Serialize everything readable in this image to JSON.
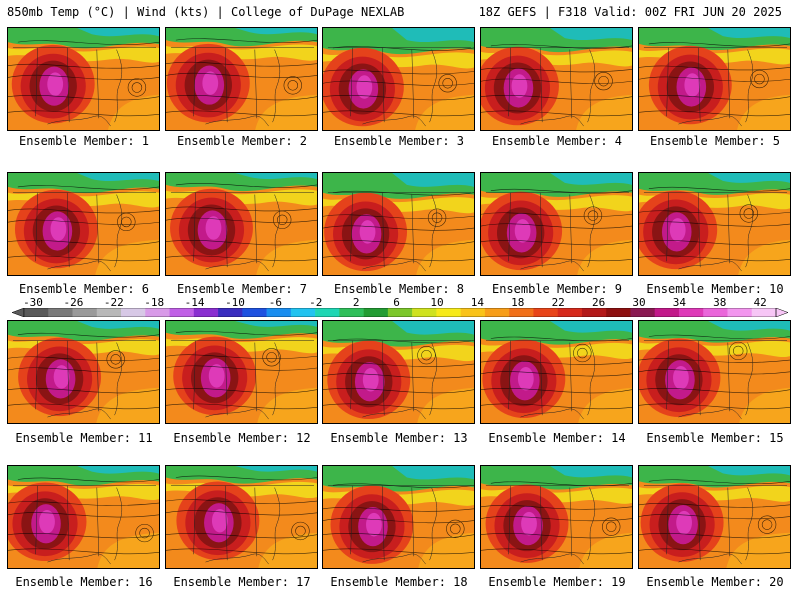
{
  "header": {
    "left": "850mb Temp (°C) | Wind (kts) | College of DuPage NEXLAB",
    "right": "18Z GEFS | F318 Valid: 00Z FRI JUN 20 2025"
  },
  "colorbar": {
    "labels": [
      "-30",
      "-26",
      "-22",
      "-18",
      "-14",
      "-10",
      "-6",
      "-2",
      "2",
      "6",
      "10",
      "14",
      "18",
      "22",
      "26",
      "30",
      "34",
      "38",
      "42"
    ],
    "colors": [
      "#5a5a5a",
      "#7a7a7a",
      "#9a9a9a",
      "#b8b8b8",
      "#d7c8e6",
      "#d89ae8",
      "#c060e6",
      "#8a2fd0",
      "#3a2dbf",
      "#1f52e0",
      "#1a8ef0",
      "#22c3f0",
      "#1fd6b4",
      "#2fbf5a",
      "#239c33",
      "#7cc72b",
      "#cfe21f",
      "#f7ea1a",
      "#f9c31a",
      "#f79e1a",
      "#f1701a",
      "#e8451a",
      "#d62a1c",
      "#b31a1a",
      "#8e1010",
      "#8a1a52",
      "#c21a8a",
      "#de3ab8",
      "#ea66da",
      "#f296ee",
      "#f7c6f6"
    ]
  },
  "members": [
    {
      "label": "Ensemble Member: 1"
    },
    {
      "label": "Ensemble Member: 2"
    },
    {
      "label": "Ensemble Member: 3"
    },
    {
      "label": "Ensemble Member: 4"
    },
    {
      "label": "Ensemble Member: 5"
    },
    {
      "label": "Ensemble Member: 6"
    },
    {
      "label": "Ensemble Member: 7"
    },
    {
      "label": "Ensemble Member: 8"
    },
    {
      "label": "Ensemble Member: 9"
    },
    {
      "label": "Ensemble Member: 10"
    },
    {
      "label": "Ensemble Member: 11"
    },
    {
      "label": "Ensemble Member: 12"
    },
    {
      "label": "Ensemble Member: 13"
    },
    {
      "label": "Ensemble Member: 14"
    },
    {
      "label": "Ensemble Member: 15"
    },
    {
      "label": "Ensemble Member: 16"
    },
    {
      "label": "Ensemble Member: 17"
    },
    {
      "label": "Ensemble Member: 18"
    },
    {
      "label": "Ensemble Member: 19"
    },
    {
      "label": "Ensemble Member: 20"
    }
  ]
}
